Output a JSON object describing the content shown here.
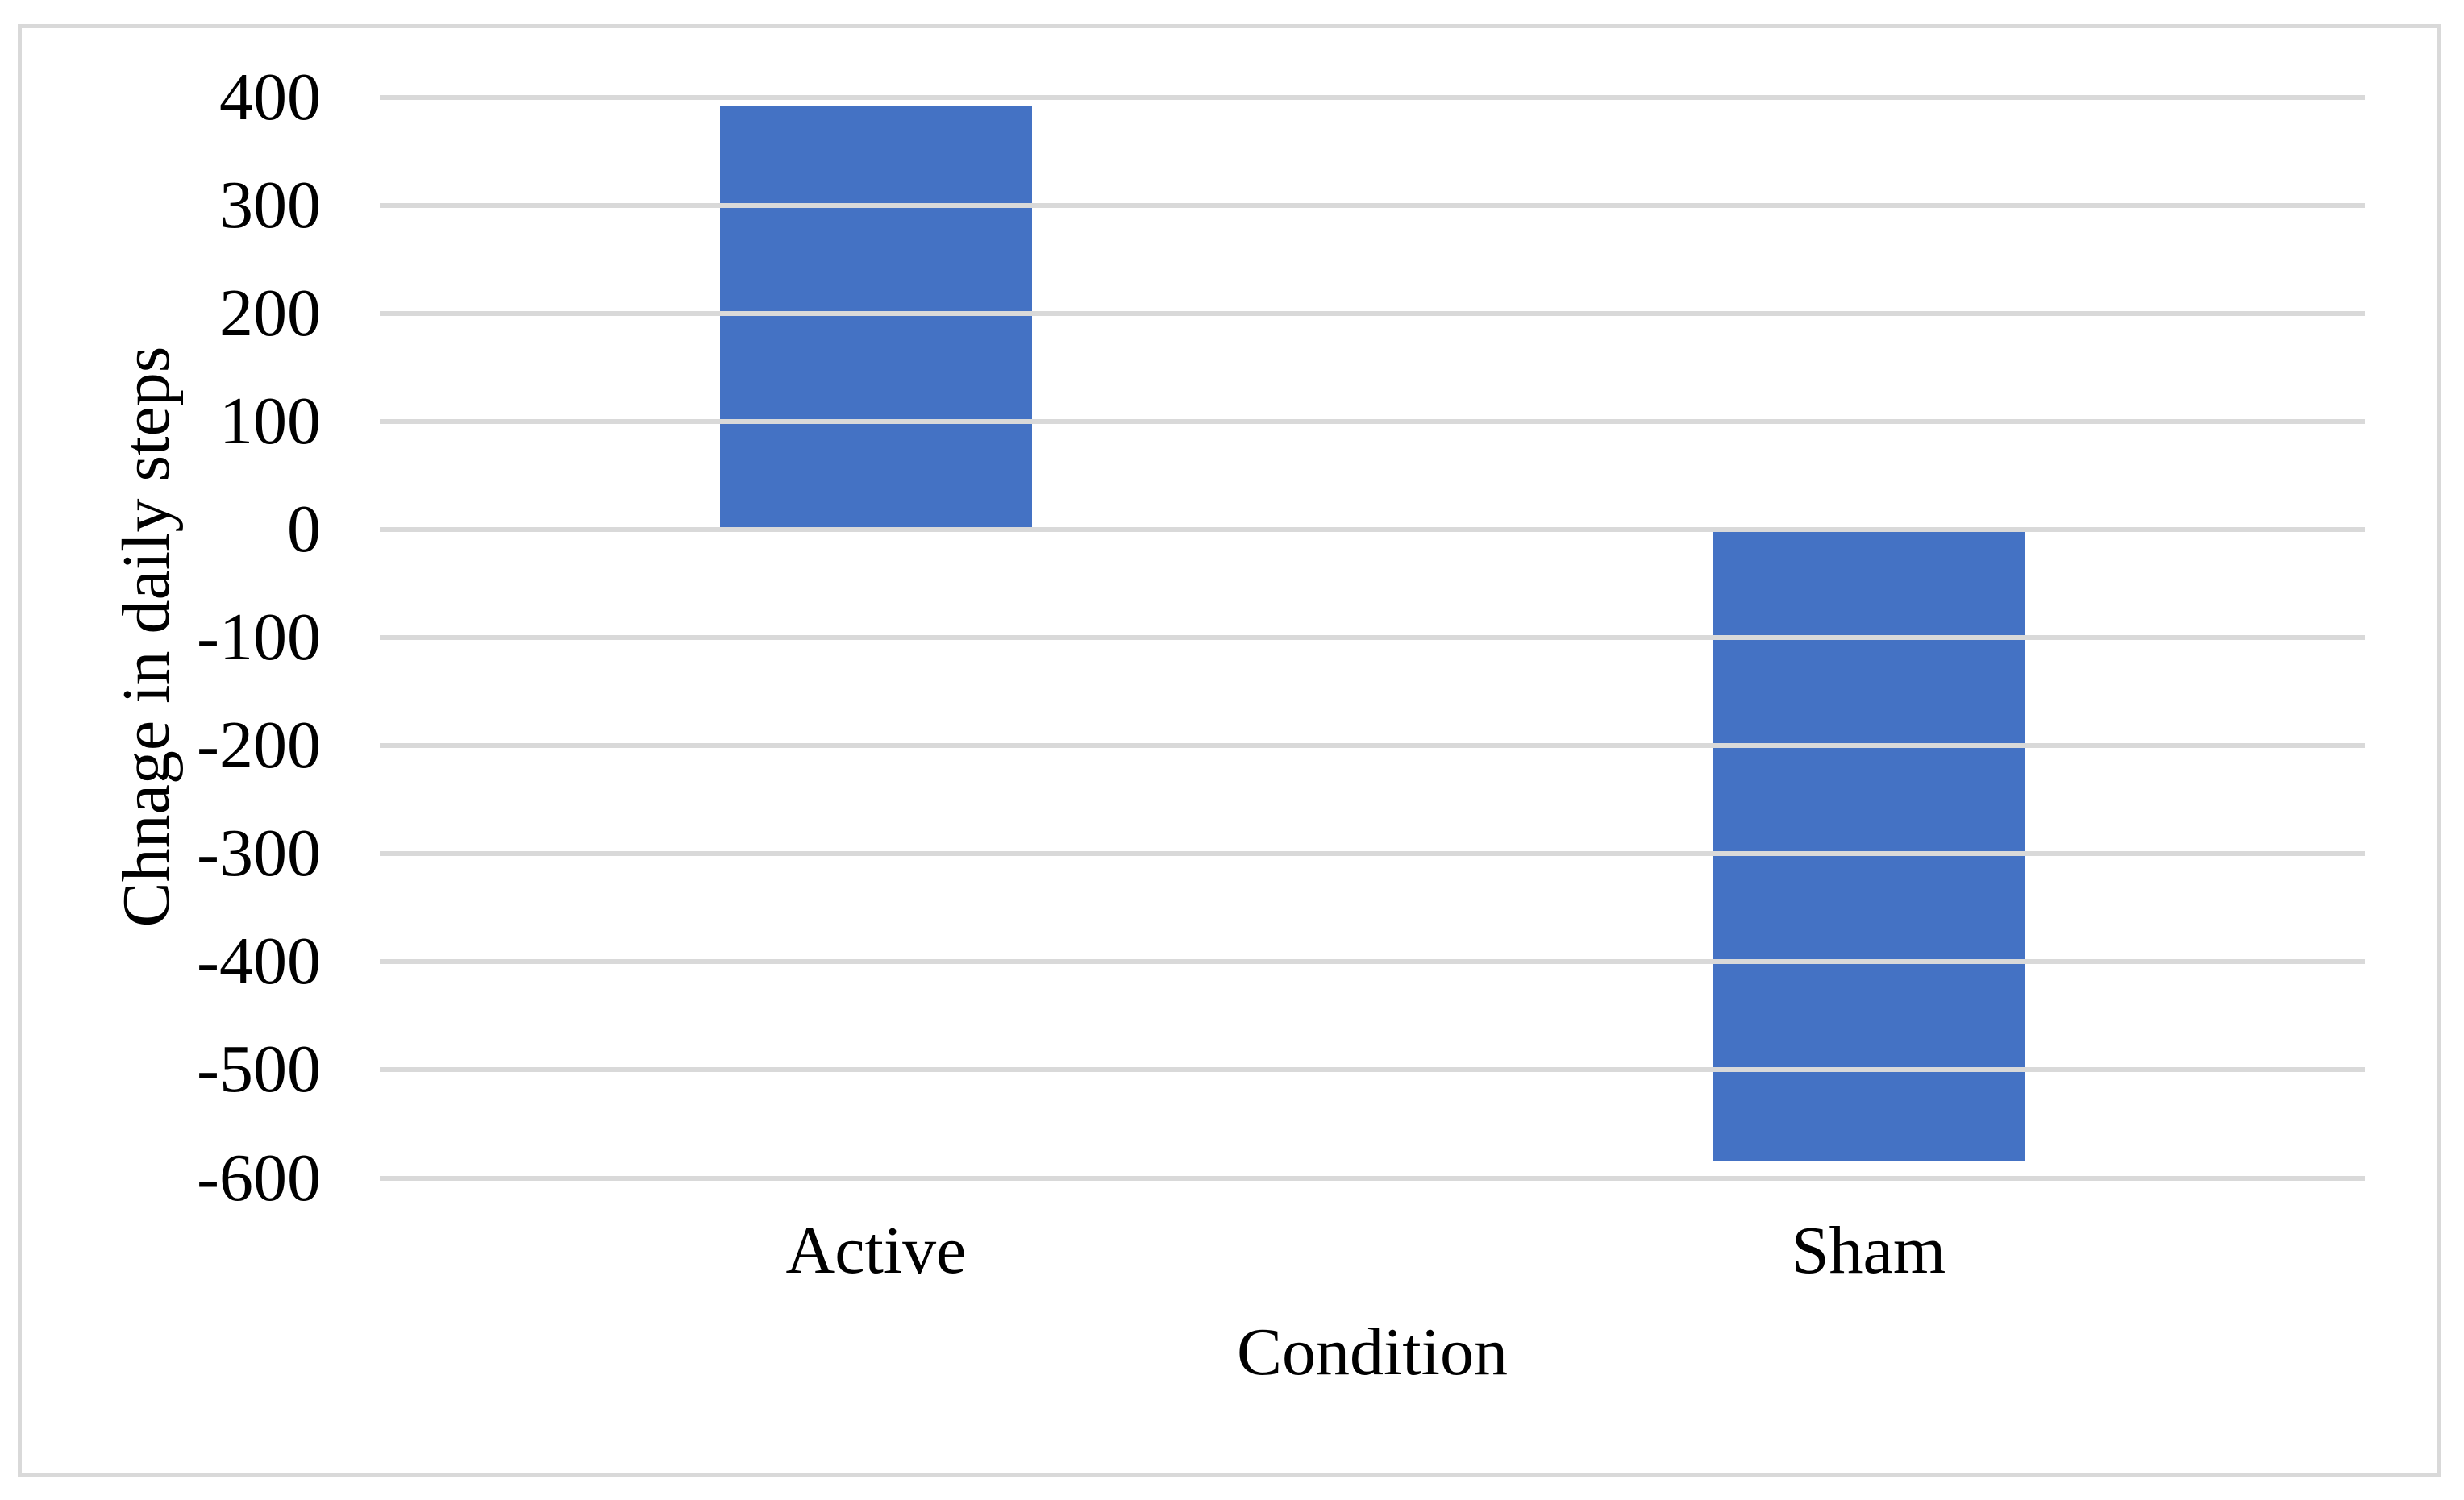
{
  "figure": {
    "background_color": "#FFFFFF",
    "border_color": "#D9D9D9"
  },
  "chart_data": {
    "type": "bar",
    "categories": [
      "Active",
      "Sham"
    ],
    "values": [
      392,
      -585
    ],
    "title": "",
    "xlabel": "Condition",
    "ylabel": "Chnage in daily steps",
    "ylim": [
      -600,
      400
    ],
    "ytick_interval": 100,
    "yticks": [
      400,
      300,
      200,
      100,
      0,
      -100,
      -200,
      -300,
      -400,
      -500,
      -600
    ],
    "ytick_labels": [
      "400",
      "300",
      "200",
      "100",
      "0",
      "-100",
      "-200",
      "-300",
      "-400",
      "-500",
      "-600"
    ],
    "bar_color": "#4472C4",
    "gridline_color": "#D9D9D9",
    "text_color": "#000000",
    "grid": true,
    "legend_position": "none"
  }
}
